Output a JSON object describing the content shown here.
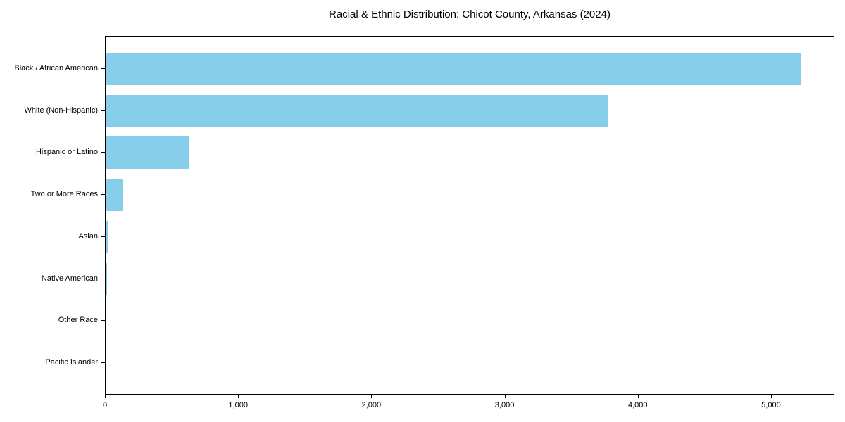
{
  "chart_data": {
    "type": "bar",
    "orientation": "horizontal",
    "title": "Racial & Ethnic Distribution: Chicot County, Arkansas (2024)",
    "categories": [
      "Black / African American",
      "White (Non-Hispanic)",
      "Hispanic or Latino",
      "Two or More Races",
      "Asian",
      "Native American",
      "Other Race",
      "Pacific Islander"
    ],
    "values": [
      5220,
      3775,
      630,
      127,
      21,
      13,
      5,
      1
    ],
    "xlabel": "",
    "ylabel": "",
    "xlim": [
      0,
      5476
    ],
    "x_ticks": [
      0,
      1000,
      2000,
      3000,
      4000,
      5000
    ],
    "x_tick_labels": [
      "0",
      "1,000",
      "2,000",
      "3,000",
      "4,000",
      "5,000"
    ],
    "bar_color": "#87CEEB",
    "background_color": "#ffffff",
    "axis_color": "#000000",
    "grid": false,
    "legend": false
  }
}
